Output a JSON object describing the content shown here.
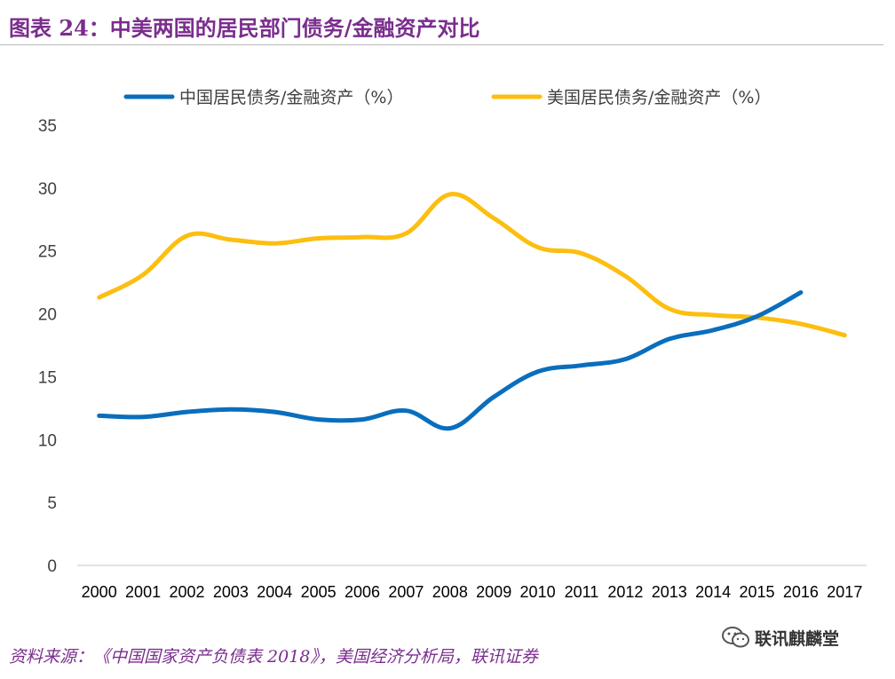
{
  "figure": {
    "title": "图表 24：中美两国的居民部门债务/金融资产对比",
    "source": "资料来源：《中国国家资产负债表 2018》，美国经济分析局，联讯证券",
    "watermark": "联讯麒麟堂"
  },
  "colors": {
    "title": "#7b2d8e",
    "china": "#0a6ebd",
    "usa": "#fcbe10",
    "axis": "#d9d9d9",
    "tick_text": "#404040"
  },
  "chart_data": {
    "type": "line",
    "title": "",
    "xlabel": "",
    "ylabel": "",
    "ylim": [
      0,
      35
    ],
    "yticks": [
      0,
      5,
      10,
      15,
      20,
      25,
      30,
      35
    ],
    "grid": false,
    "legend_position": "top",
    "categories": [
      "2000",
      "2001",
      "2002",
      "2003",
      "2004",
      "2005",
      "2006",
      "2007",
      "2008",
      "2009",
      "2010",
      "2011",
      "2012",
      "2013",
      "2014",
      "2015",
      "2016",
      "2017"
    ],
    "series": [
      {
        "name": "中国居民债务/金融资产（%）",
        "color_key": "china",
        "values": [
          11.9,
          11.8,
          12.2,
          12.4,
          12.2,
          11.6,
          11.6,
          12.3,
          10.9,
          13.4,
          15.4,
          15.9,
          16.4,
          18.0,
          18.7,
          19.8,
          21.7,
          null
        ]
      },
      {
        "name": "美国居民债务/金融资产（%）",
        "color_key": "usa",
        "values": [
          21.3,
          23.1,
          26.2,
          25.9,
          25.6,
          26.0,
          26.1,
          26.4,
          29.5,
          27.6,
          25.3,
          24.8,
          23.0,
          20.4,
          19.9,
          19.7,
          19.2,
          18.3
        ]
      }
    ]
  }
}
